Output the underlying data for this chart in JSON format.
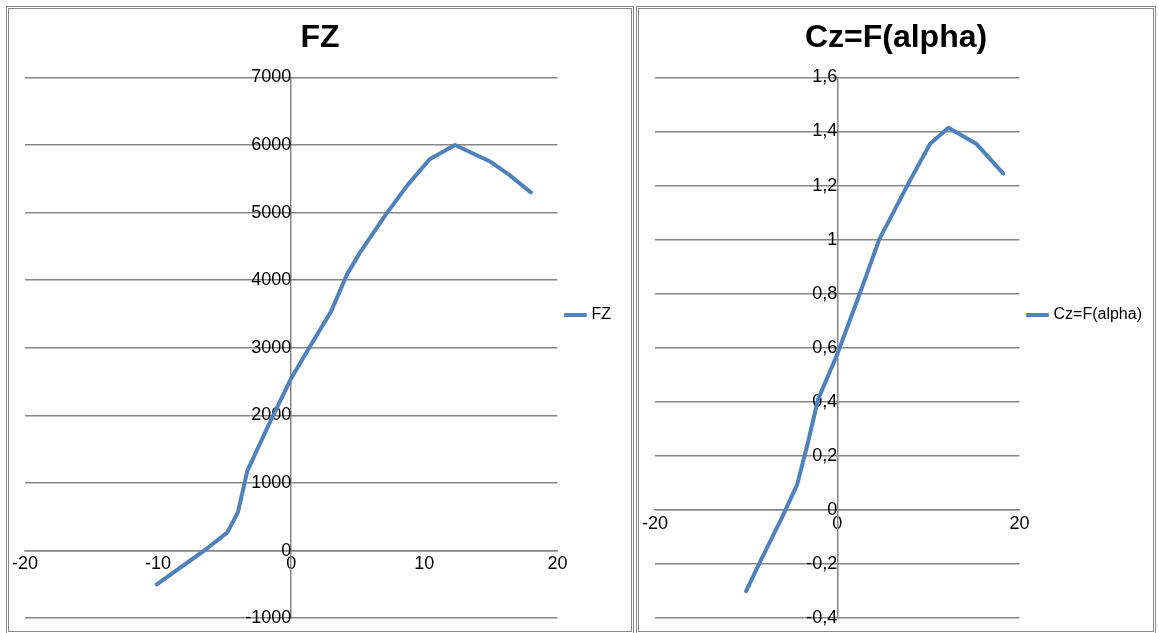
{
  "chart_data": [
    {
      "type": "line",
      "title": "FZ",
      "xlim": [
        -20,
        20
      ],
      "xticks": [
        -20,
        -10,
        0,
        10,
        20
      ],
      "ylim": [
        -1000,
        7000
      ],
      "yticks": [
        -1000,
        0,
        1000,
        2000,
        3000,
        4000,
        5000,
        6000,
        7000
      ],
      "grid": "y",
      "legend": "right",
      "marker": "none",
      "line_style": "solid",
      "series": [
        {
          "name": "FZ",
          "color": "#4f81bd",
          "x": [
            -10.1,
            -6.4,
            -4.8,
            -4,
            -3.3,
            -1.5,
            0,
            1.35,
            3,
            4.2,
            5.2,
            7.1,
            8.75,
            10.4,
            12.3,
            14.9,
            16.3,
            18
          ],
          "values": [
            -500,
            20,
            270,
            570,
            1180,
            1940,
            2550,
            3000,
            3540,
            4090,
            4420,
            4970,
            5410,
            5790,
            6000,
            5760,
            5570,
            5300
          ]
        }
      ]
    },
    {
      "type": "line",
      "title": "Cz=F(alpha)",
      "xlim": [
        -20,
        20
      ],
      "xticks": [
        -20,
        0,
        20
      ],
      "ylim": [
        -0.4,
        1.6
      ],
      "yticks": [
        {
          "value": -0.4,
          "label": "-0,4"
        },
        {
          "value": -0.2,
          "label": "-0,2"
        },
        0,
        {
          "value": 0.2,
          "label": "0,2"
        },
        {
          "value": 0.4,
          "label": "0,4"
        },
        {
          "value": 0.6,
          "label": "0,6"
        },
        {
          "value": 0.8,
          "label": "0,8"
        },
        1,
        {
          "value": 1.2,
          "label": "1,2"
        },
        {
          "value": 1.4,
          "label": "1,4"
        },
        {
          "value": 1.6,
          "label": "1,6"
        }
      ],
      "grid": "y",
      "legend": "right",
      "marker": "none",
      "line_style": "solid",
      "series": [
        {
          "name": "Cz=F(alpha)",
          "color": "#4f81bd",
          "x": [
            -10,
            -8.3,
            -6.1,
            -4.4,
            -3.25,
            -2.1,
            0,
            1.8,
            2.9,
            4.6,
            6.3,
            8,
            10.2,
            12.2,
            15.25,
            18.2
          ],
          "values": [
            -0.3,
            -0.18,
            -0.03,
            0.094,
            0.245,
            0.41,
            0.576,
            0.74,
            0.84,
            1.0,
            1.11,
            1.22,
            1.355,
            1.414,
            1.355,
            1.245
          ]
        }
      ]
    }
  ]
}
